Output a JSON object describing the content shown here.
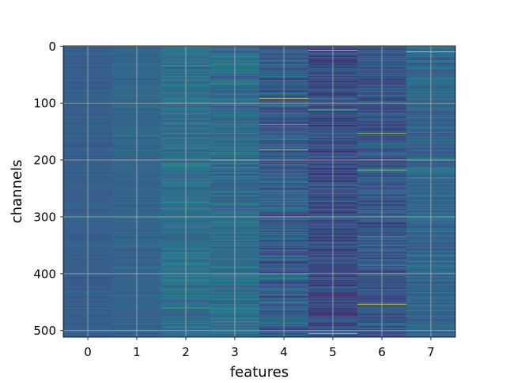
{
  "chart_data": {
    "type": "heatmap",
    "title": "",
    "xlabel": "features",
    "ylabel": "channels",
    "x_categories": [
      "0",
      "1",
      "2",
      "3",
      "4",
      "5",
      "6",
      "7"
    ],
    "x_ticks": [
      0,
      1,
      2,
      3,
      4,
      5,
      6,
      7
    ],
    "y_ticks": [
      0,
      100,
      200,
      300,
      400,
      500
    ],
    "xlim": [
      -0.5,
      7.5
    ],
    "ylim": [
      511.5,
      -0.5
    ],
    "n_channels": 512,
    "n_features": 8,
    "y_axis_inverted": true,
    "grid": true,
    "colormap": "viridis",
    "colormap_stops": [
      "#440154",
      "#3b528b",
      "#21918c",
      "#5ec962",
      "#fde725"
    ],
    "per_feature_base_level": [
      0.3,
      0.33,
      0.37,
      0.36,
      0.3,
      0.24,
      0.28,
      0.33
    ],
    "per_feature_variability": [
      0.04,
      0.05,
      0.09,
      0.11,
      0.13,
      0.12,
      0.11,
      0.1
    ],
    "notable_high_values": [
      {
        "feature": 7,
        "channel": 10,
        "level": 0.97
      },
      {
        "feature": 5,
        "channel": 7,
        "level": 0.95
      },
      {
        "feature": 4,
        "channel": 92,
        "level": 0.9
      },
      {
        "feature": 4,
        "channel": 182,
        "level": 0.95
      },
      {
        "feature": 5,
        "channel": 112,
        "level": 0.7
      },
      {
        "feature": 4,
        "channel": 138,
        "level": 0.7
      },
      {
        "feature": 6,
        "channel": 153,
        "level": 0.85
      },
      {
        "feature": 6,
        "channel": 218,
        "level": 0.85
      },
      {
        "feature": 6,
        "channel": 400,
        "level": 0.8
      },
      {
        "feature": 6,
        "channel": 454,
        "level": 0.95
      },
      {
        "feature": 5,
        "channel": 505,
        "level": 0.95
      },
      {
        "feature": 3,
        "channel": 100,
        "level": 0.6
      },
      {
        "feature": 2,
        "channel": 35,
        "level": 0.6
      },
      {
        "feature": 7,
        "channel": 232,
        "level": 0.6
      },
      {
        "feature": 6,
        "channel": 335,
        "level": 0.7
      },
      {
        "feature": 2,
        "channel": 460,
        "level": 0.65
      },
      {
        "feature": 3,
        "channel": 485,
        "level": 0.6
      }
    ]
  }
}
